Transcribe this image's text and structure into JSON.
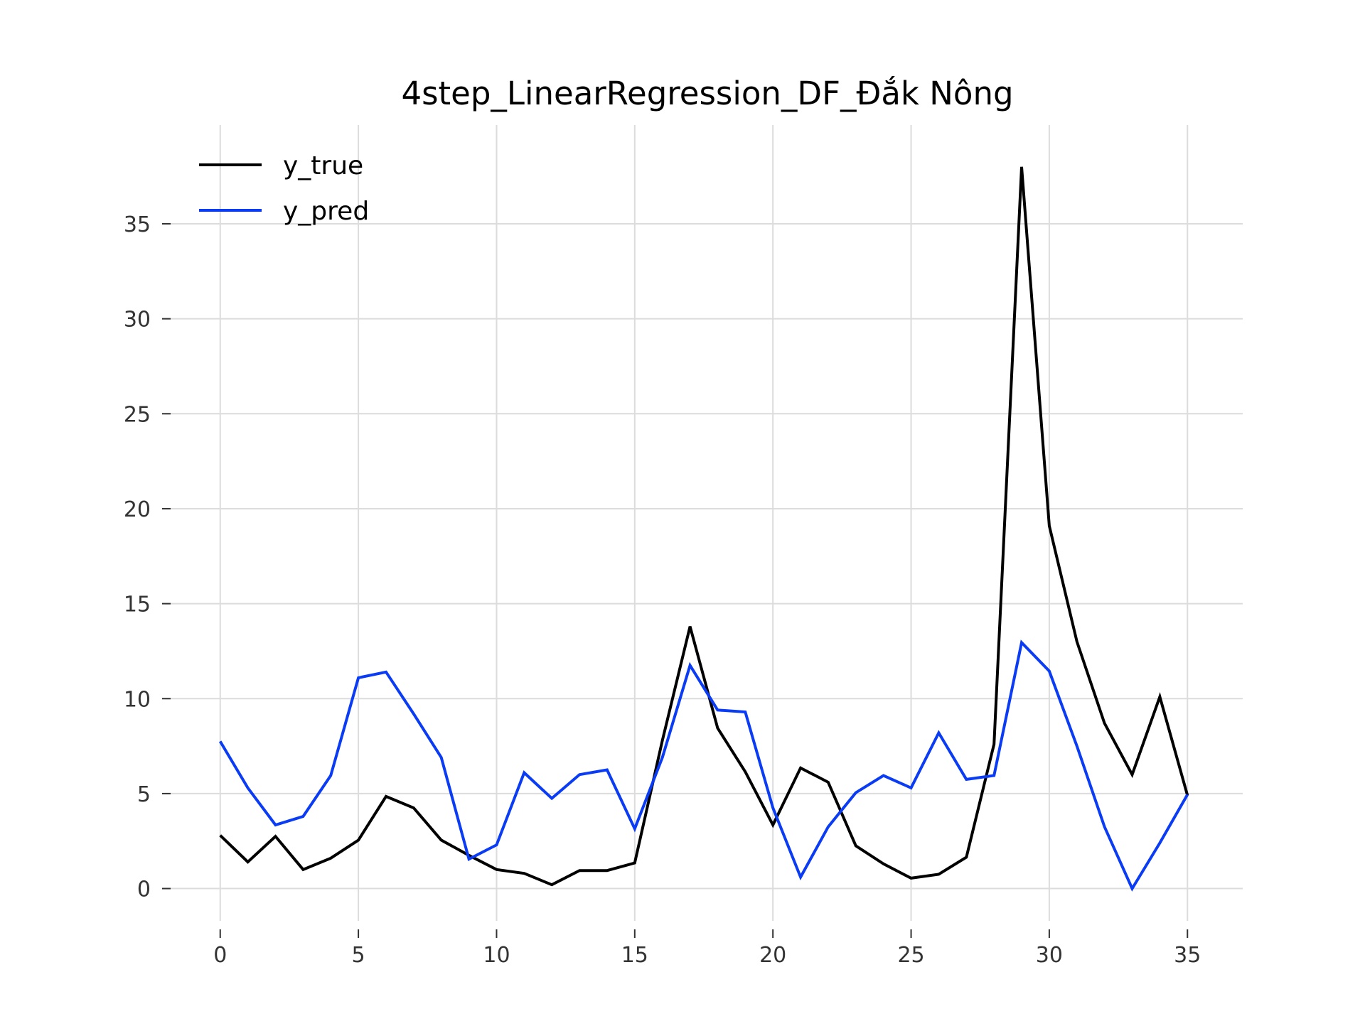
{
  "chart_data": {
    "type": "line",
    "title": "4step_LinearRegression_DF_Đắk Nông",
    "xlabel": "",
    "ylabel": "",
    "x": [
      0,
      1,
      2,
      3,
      4,
      5,
      6,
      7,
      8,
      9,
      10,
      11,
      12,
      13,
      14,
      15,
      16,
      17,
      18,
      19,
      20,
      21,
      22,
      23,
      24,
      25,
      26,
      27,
      28,
      29,
      30,
      31,
      32,
      33,
      34,
      35
    ],
    "xlim": [
      -2,
      37
    ],
    "ylim": [
      -1.7,
      40.2
    ],
    "xticks": [
      0,
      5,
      10,
      15,
      20,
      25,
      30,
      35
    ],
    "yticks": [
      0,
      5,
      10,
      15,
      20,
      25,
      30,
      35
    ],
    "grid": true,
    "legend_position": "top-left",
    "series": [
      {
        "name": "y_true",
        "color": "#000000",
        "values": [
          2.8,
          1.4,
          2.75,
          1.0,
          1.6,
          2.55,
          4.85,
          4.25,
          2.55,
          1.75,
          1.0,
          0.8,
          0.2,
          0.95,
          0.95,
          1.35,
          7.8,
          13.8,
          8.45,
          6.15,
          3.35,
          6.35,
          5.6,
          2.25,
          1.3,
          0.55,
          0.75,
          1.65,
          7.6,
          38.0,
          19.1,
          13.0,
          8.7,
          6.0,
          10.1,
          4.9
        ]
      },
      {
        "name": "y_pred",
        "color": "#0a3cf5",
        "values": [
          7.75,
          5.3,
          3.35,
          3.8,
          5.95,
          11.1,
          11.4,
          9.2,
          6.9,
          1.55,
          2.3,
          6.1,
          4.75,
          6.0,
          6.25,
          3.15,
          6.9,
          11.75,
          9.4,
          9.3,
          4.25,
          0.6,
          3.25,
          5.05,
          5.95,
          5.3,
          8.2,
          5.75,
          5.95,
          12.95,
          11.45,
          7.5,
          3.25,
          0.0,
          2.4,
          4.95
        ]
      }
    ]
  }
}
